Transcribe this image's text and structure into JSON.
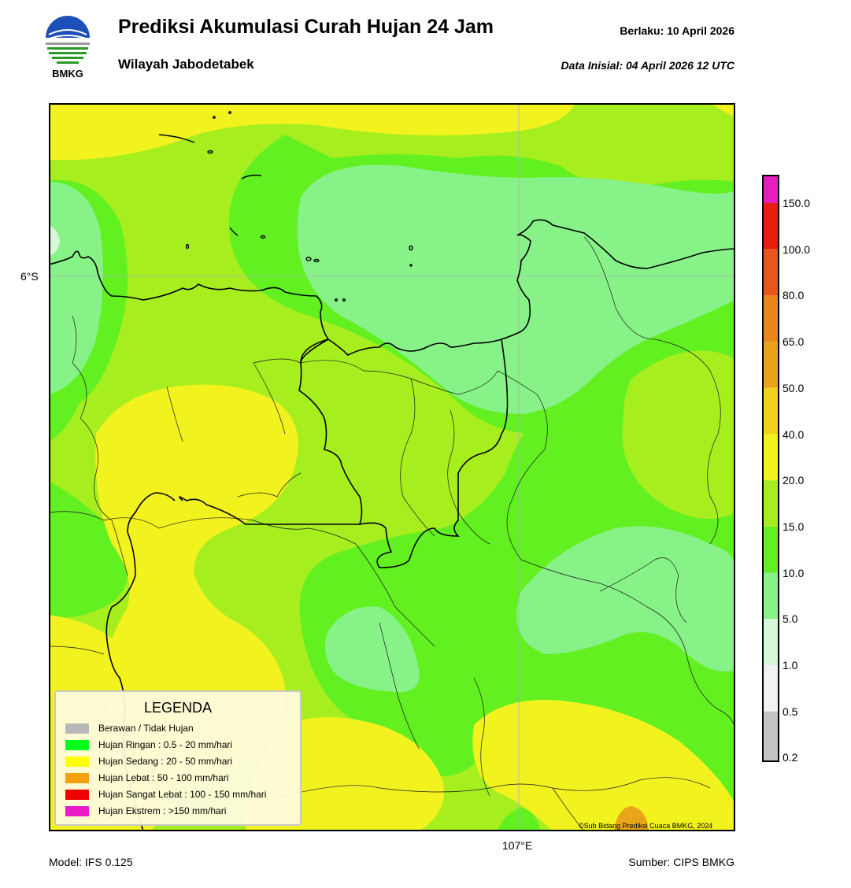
{
  "header": {
    "title": "Prediksi Akumulasi Curah Hujan 24 Jam",
    "subtitle": "Wilayah Jabodetabek",
    "valid_date": "Berlaku:  10 April 2026",
    "initial_data": "Data Inisial:  04 April 2026 12 UTC",
    "logo_text": "BMKG"
  },
  "map": {
    "lat_label": "6°S",
    "lon_label": "107°E",
    "credit": "©Sub Bidang Prediksi Cuaca BMKG, 2024"
  },
  "footer": {
    "model": "Model: IFS 0.125",
    "source": "Sumber: CIPS BMKG"
  },
  "colorbar": {
    "labels": [
      "150.0",
      "100.0",
      "80.0",
      "65.0",
      "50.0",
      "40.0",
      "20.0",
      "15.0",
      "10.0",
      "5.0",
      "1.0",
      "0.5",
      "0.2"
    ],
    "colors_top_to_bottom": [
      "#e61ec0",
      "#e81d10",
      "#e8561c",
      "#ec861c",
      "#eaa41a",
      "#f0d21a",
      "#f2f21f",
      "#a7ee1f",
      "#62f021",
      "#87f287",
      "#d8f7d8",
      "#f2f2f2",
      "#c3c3c3"
    ]
  },
  "legend": {
    "title": "LEGENDA",
    "items": [
      {
        "label": "Berawan / Tidak Hujan",
        "color": "#b8b8b8"
      },
      {
        "label": "Hujan Ringan : 0.5 - 20 mm/hari",
        "color": "#00ff1a"
      },
      {
        "label": "Hujan Sedang : 20 - 50 mm/hari",
        "color": "#ffff00"
      },
      {
        "label": "Hujan Lebat : 50 - 100 mm/hari",
        "color": "#f5a00f"
      },
      {
        "label": "Hujan Sangat Lebat : 100 - 150 mm/hari",
        "color": "#ee0000"
      },
      {
        "label": "Hujan Ekstrem : >150 mm/hari",
        "color": "#ea1ac6"
      }
    ]
  }
}
